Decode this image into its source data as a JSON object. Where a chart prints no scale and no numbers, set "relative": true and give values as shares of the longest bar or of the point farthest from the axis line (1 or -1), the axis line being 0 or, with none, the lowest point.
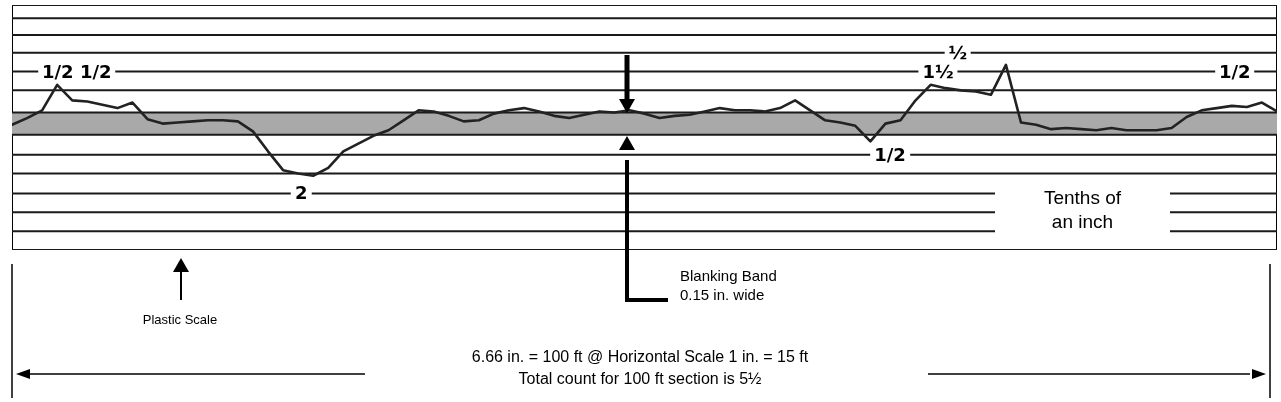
{
  "chart_data": {
    "type": "line",
    "relative": true,
    "categories": [
      null,
      null,
      null,
      null,
      null,
      null,
      null,
      null,
      null,
      null,
      null,
      null,
      null,
      null,
      null,
      null,
      null,
      null,
      null,
      null,
      null,
      null,
      null,
      null,
      null,
      null,
      null,
      null,
      null,
      null,
      null,
      null,
      null,
      null,
      null,
      null,
      null,
      null,
      null,
      null,
      null,
      null,
      null,
      null,
      null,
      null,
      null,
      null,
      null,
      null,
      null,
      null,
      null,
      null,
      null,
      null,
      null,
      null,
      null,
      null,
      null,
      null,
      null,
      null,
      null,
      null,
      null,
      null,
      null,
      null,
      null,
      null,
      null,
      null,
      null,
      null,
      null,
      null,
      null,
      null,
      null,
      null,
      null,
      null,
      null
    ],
    "series": [
      {
        "color": "#222222",
        "values": [
          0.46,
          0.52,
          0.59,
          0.82,
          0.68,
          0.67,
          0.64,
          0.61,
          0.66,
          0.51,
          0.47,
          0.48,
          0.49,
          0.5,
          0.5,
          0.49,
          0.4,
          0.22,
          0.05,
          0.02,
          0,
          0.07,
          0.22,
          0.29,
          0.36,
          0.41,
          0.5,
          0.59,
          0.58,
          0.54,
          0.49,
          0.5,
          0.56,
          0.59,
          0.61,
          0.58,
          0.54,
          0.52,
          0.55,
          0.58,
          0.57,
          0.59,
          0.56,
          0.52,
          0.54,
          0.55,
          0.58,
          0.61,
          0.59,
          0.59,
          0.58,
          0.61,
          0.68,
          0.59,
          0.5,
          0.48,
          0.45,
          0.31,
          0.47,
          0.5,
          0.68,
          0.82,
          0.79,
          0.77,
          0.76,
          0.73,
          1,
          0.48,
          0.46,
          0.42,
          0.43,
          0.42,
          0.41,
          0.43,
          0.41,
          0.41,
          0.41,
          0.43,
          0.53,
          0.59,
          0.61,
          0.63,
          0.62,
          0.66,
          0.58
        ]
      }
    ],
    "bands": [
      {
        "axis": "y",
        "from": 0.37,
        "to": 0.57,
        "color": "#a9a9a9"
      }
    ],
    "ref_lines": [
      {
        "axis": "y",
        "value": 1.54
      },
      {
        "axis": "y",
        "value": 1.42
      },
      {
        "axis": "y",
        "value": 1.27
      },
      {
        "axis": "y",
        "value": 1.11
      },
      {
        "axis": "y",
        "value": 0.94
      },
      {
        "axis": "y",
        "value": 0.77
      },
      {
        "axis": "y",
        "value": 0.57
      },
      {
        "axis": "y",
        "value": 0.37
      },
      {
        "axis": "y",
        "value": 0.19
      },
      {
        "axis": "y",
        "value": 0.02
      },
      {
        "axis": "y",
        "value": -0.16
      },
      {
        "axis": "y",
        "value": -0.33
      },
      {
        "axis": "y",
        "value": -0.5
      },
      {
        "axis": "y",
        "value": -0.67
      }
    ],
    "annotations": [
      {
        "text": "1/2 1/2",
        "y": 0.94
      },
      {
        "text": "2",
        "y": -0.16
      },
      {
        "text": "1/2",
        "y": 0.19
      },
      {
        "text": "1½",
        "y": 0.94
      },
      {
        "text": "½",
        "y": 1.11
      },
      {
        "text": "1/2",
        "y": 0.94
      },
      "Tenths of an inch",
      "Plastic Scale",
      "Blanking Band 0.15 in. wide",
      "6.66 in. = 100 ft @ Horizontal Scale 1 in. = 15 ft",
      "Total count for 100 ft section is 5½"
    ]
  }
}
